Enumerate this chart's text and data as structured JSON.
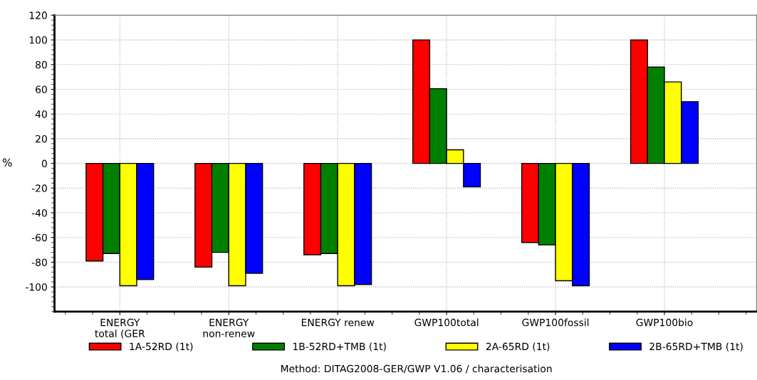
{
  "chart_data": {
    "type": "bar",
    "ylabel": "%",
    "categories": [
      "ENERGY\ntotal (GER",
      "ENERGY\nnon-renew",
      "ENERGY renew",
      "GWP100total",
      "GWP100fossil",
      "GWP100bio"
    ],
    "series": [
      {
        "name": "1A-52RD (1t)",
        "color": "#ff0000",
        "values": [
          -79,
          -84,
          -74,
          100,
          -64,
          100
        ]
      },
      {
        "name": "1B-52RD+TMB (1t)",
        "color": "#008000",
        "values": [
          -73,
          -72,
          -73,
          60.5,
          -66,
          78
        ]
      },
      {
        "name": "2A-65RD (1t)",
        "color": "#ffff00",
        "values": [
          -99,
          -99,
          -99,
          11,
          -95,
          66
        ]
      },
      {
        "name": "2B-65RD+TMB (1t)",
        "color": "#0000ff",
        "values": [
          -94,
          -89,
          -98,
          -19,
          -99,
          50
        ]
      }
    ],
    "ylim": [
      -120,
      120
    ],
    "yticks": [
      -100,
      -80,
      -60,
      -40,
      -20,
      0,
      20,
      40,
      60,
      80,
      100,
      120
    ],
    "grid": true,
    "legend": "bottom",
    "annotations": [
      "Method: DITAG2008-GER/GWP V1.06 / characterisation"
    ]
  }
}
